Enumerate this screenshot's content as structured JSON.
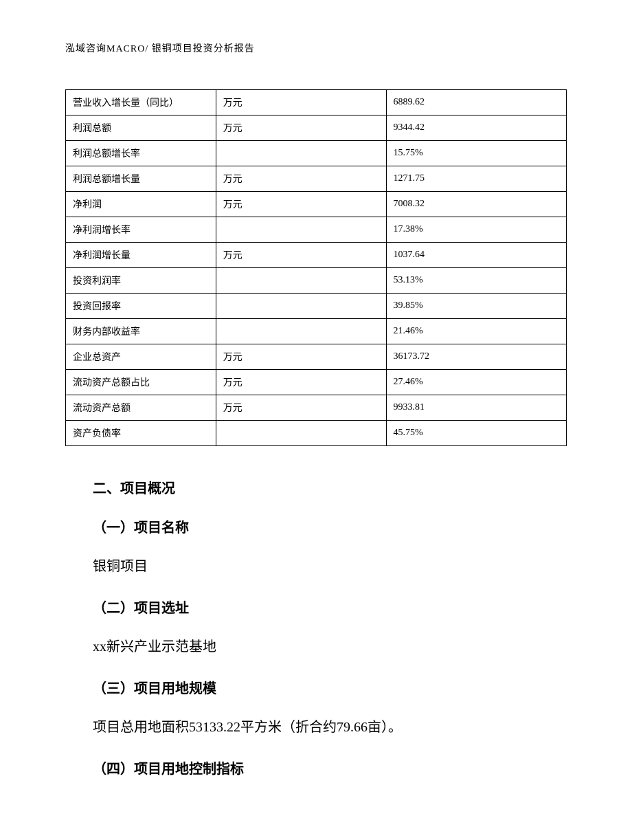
{
  "header": "泓域咨询MACRO/    银铜项目投资分析报告",
  "table": {
    "rows": [
      {
        "label": "营业收入增长量（同比）",
        "unit": "万元",
        "value": "6889.62"
      },
      {
        "label": "利润总额",
        "unit": "万元",
        "value": "9344.42"
      },
      {
        "label": "利润总额增长率",
        "unit": "",
        "value": "15.75%"
      },
      {
        "label": "利润总额增长量",
        "unit": "万元",
        "value": "1271.75"
      },
      {
        "label": "净利润",
        "unit": "万元",
        "value": "7008.32"
      },
      {
        "label": "净利润增长率",
        "unit": "",
        "value": "17.38%"
      },
      {
        "label": "净利润增长量",
        "unit": "万元",
        "value": "1037.64"
      },
      {
        "label": "投资利润率",
        "unit": "",
        "value": "53.13%"
      },
      {
        "label": "投资回报率",
        "unit": "",
        "value": "39.85%"
      },
      {
        "label": "财务内部收益率",
        "unit": "",
        "value": "21.46%"
      },
      {
        "label": "企业总资产",
        "unit": "万元",
        "value": "36173.72"
      },
      {
        "label": "流动资产总额占比",
        "unit": "万元",
        "value": "27.46%"
      },
      {
        "label": "流动资产总额",
        "unit": "万元",
        "value": "9933.81"
      },
      {
        "label": "资产负债率",
        "unit": "",
        "value": "45.75%"
      }
    ]
  },
  "sections": {
    "title": "二、项目概况",
    "s1": {
      "heading": "（一）项目名称",
      "text": "银铜项目"
    },
    "s2": {
      "heading": "（二）项目选址",
      "text": "xx新兴产业示范基地"
    },
    "s3": {
      "heading": "（三）项目用地规模",
      "text": "项目总用地面积53133.22平方米（折合约79.66亩）。"
    },
    "s4": {
      "heading": "（四）项目用地控制指标"
    }
  }
}
